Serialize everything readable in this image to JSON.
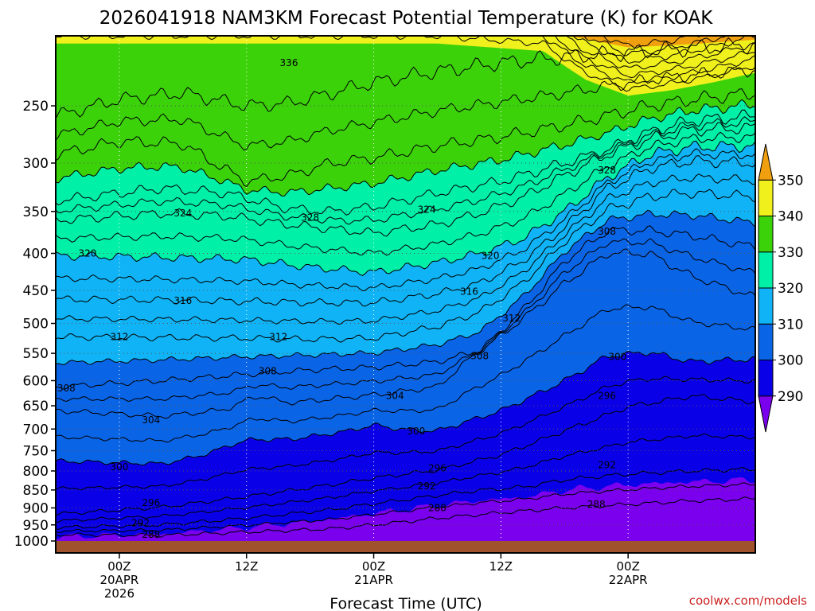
{
  "chart_data": {
    "type": "heatmap",
    "title": "2026041918 NAM3KM Forecast Potential Temperature (K) for KOAK",
    "xlabel": "Forecast Time (UTC)",
    "ylabel": "",
    "credit": "coolwx.com/models",
    "x_forecast_hours": [
      -6,
      60
    ],
    "y_pressure_hpa": [
      1000,
      200
    ],
    "x_ticks": [
      {
        "h": 0,
        "line1": "00Z",
        "line2": "20APR",
        "line3": "2026"
      },
      {
        "h": 12,
        "line1": "12Z",
        "line2": "",
        "line3": ""
      },
      {
        "h": 24,
        "line1": "00Z",
        "line2": "21APR",
        "line3": ""
      },
      {
        "h": 36,
        "line1": "12Z",
        "line2": "",
        "line3": ""
      },
      {
        "h": 48,
        "line1": "00Z",
        "line2": "22APR",
        "line3": ""
      }
    ],
    "y_ticks": [
      250,
      300,
      350,
      400,
      450,
      500,
      550,
      600,
      650,
      700,
      750,
      800,
      850,
      900,
      950,
      1000
    ],
    "colorbar": {
      "levels": [
        290,
        300,
        310,
        320,
        330,
        340,
        350
      ],
      "colors": [
        "#7a00ee",
        "#0a00e8",
        "#0a64e6",
        "#10b4f6",
        "#00f0a8",
        "#3cd20a",
        "#f0f01c",
        "#f0a00e"
      ]
    },
    "contour_interval": 4,
    "contour_labels": [
      {
        "h": 3,
        "p": 680,
        "v": "304"
      },
      {
        "h": 0,
        "p": 790,
        "v": "300"
      },
      {
        "h": 3,
        "p": 885,
        "v": "296"
      },
      {
        "h": 2,
        "p": 945,
        "v": "292"
      },
      {
        "h": 3,
        "p": 980,
        "v": "288"
      },
      {
        "h": -5,
        "p": 615,
        "v": "308"
      },
      {
        "h": -3,
        "p": 400,
        "v": "320"
      },
      {
        "h": 6,
        "p": 352,
        "v": "324"
      },
      {
        "h": 18,
        "p": 357,
        "v": "328"
      },
      {
        "h": 16,
        "p": 218,
        "v": "336"
      },
      {
        "h": 6,
        "p": 465,
        "v": "316"
      },
      {
        "h": 0,
        "p": 522,
        "v": "312"
      },
      {
        "h": 15,
        "p": 522,
        "v": "312"
      },
      {
        "h": 14,
        "p": 582,
        "v": "308"
      },
      {
        "h": 26,
        "p": 630,
        "v": "304"
      },
      {
        "h": 28,
        "p": 705,
        "v": "300"
      },
      {
        "h": 30,
        "p": 793,
        "v": "296"
      },
      {
        "h": 29,
        "p": 840,
        "v": "292"
      },
      {
        "h": 30,
        "p": 900,
        "v": "288"
      },
      {
        "h": 29,
        "p": 348,
        "v": "324"
      },
      {
        "h": 35,
        "p": 403,
        "v": "320"
      },
      {
        "h": 33,
        "p": 452,
        "v": "316"
      },
      {
        "h": 37,
        "p": 492,
        "v": "312"
      },
      {
        "h": 34,
        "p": 555,
        "v": "308"
      },
      {
        "h": 46,
        "p": 373,
        "v": "308"
      },
      {
        "h": 46,
        "p": 307,
        "v": "328"
      },
      {
        "h": 47,
        "p": 556,
        "v": "300"
      },
      {
        "h": 46,
        "p": 630,
        "v": "296"
      },
      {
        "h": 46,
        "p": 785,
        "v": "292"
      },
      {
        "h": 45,
        "p": 890,
        "v": "288"
      }
    ]
  }
}
